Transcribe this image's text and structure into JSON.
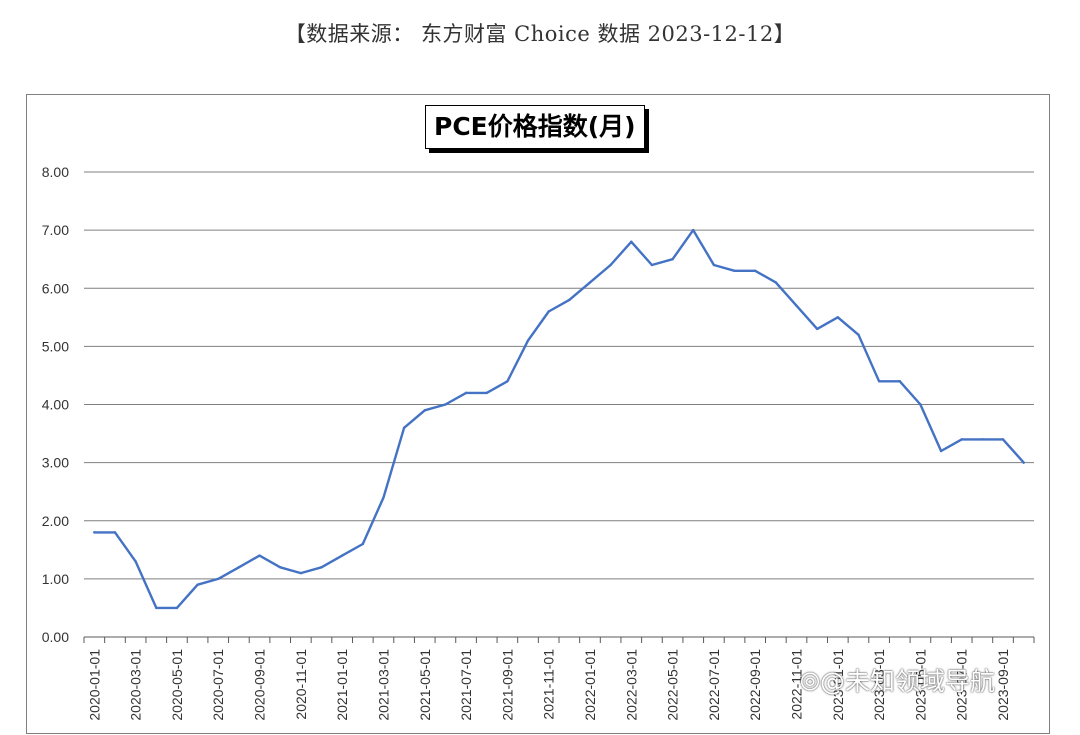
{
  "source_note": "【数据来源： 东方财富 Choice 数据 2023-12-12】",
  "watermark": "⦾@未知领域导航",
  "chart_data": {
    "type": "line",
    "title": "PCE价格指数(月)",
    "xlabel": "",
    "ylabel": "",
    "ylim": [
      0,
      8
    ],
    "yticks": [
      "0.00",
      "1.00",
      "2.00",
      "3.00",
      "4.00",
      "5.00",
      "6.00",
      "7.00",
      "8.00"
    ],
    "grid": true,
    "line_color": "#4472C4",
    "x": [
      "2020-01-01",
      "2020-02-01",
      "2020-03-01",
      "2020-04-01",
      "2020-05-01",
      "2020-06-01",
      "2020-07-01",
      "2020-08-01",
      "2020-09-01",
      "2020-10-01",
      "2020-11-01",
      "2020-12-01",
      "2021-01-01",
      "2021-02-01",
      "2021-03-01",
      "2021-04-01",
      "2021-05-01",
      "2021-06-01",
      "2021-07-01",
      "2021-08-01",
      "2021-09-01",
      "2021-10-01",
      "2021-11-01",
      "2021-12-01",
      "2022-01-01",
      "2022-02-01",
      "2022-03-01",
      "2022-04-01",
      "2022-05-01",
      "2022-06-01",
      "2022-07-01",
      "2022-08-01",
      "2022-09-01",
      "2022-10-01",
      "2022-11-01",
      "2022-12-01",
      "2023-01-01",
      "2023-02-01",
      "2023-03-01",
      "2023-04-01",
      "2023-05-01",
      "2023-06-01",
      "2023-07-01",
      "2023-08-01",
      "2023-09-01",
      "2023-10-01"
    ],
    "xtick_labels": [
      "2020-01-01",
      "2020-03-01",
      "2020-05-01",
      "2020-07-01",
      "2020-09-01",
      "2020-11-01",
      "2021-01-01",
      "2021-03-01",
      "2021-05-01",
      "2021-07-01",
      "2021-09-01",
      "2021-11-01",
      "2022-01-01",
      "2022-03-01",
      "2022-05-01",
      "2022-07-01",
      "2022-09-01",
      "2022-11-01",
      "2023-01-01",
      "2023-03-01",
      "2023-05-01",
      "2023-07-01",
      "2023-09-01"
    ],
    "values": [
      1.8,
      1.8,
      1.3,
      0.5,
      0.5,
      0.9,
      1.0,
      1.2,
      1.4,
      1.2,
      1.1,
      1.2,
      1.4,
      1.6,
      2.4,
      3.6,
      3.9,
      4.0,
      4.2,
      4.2,
      4.4,
      5.1,
      5.6,
      5.8,
      6.1,
      6.4,
      6.8,
      6.4,
      6.5,
      7.0,
      6.4,
      6.3,
      6.3,
      6.1,
      5.7,
      5.3,
      5.5,
      5.2,
      4.4,
      4.4,
      4.0,
      3.2,
      3.4,
      3.4,
      3.4,
      3.0
    ]
  }
}
